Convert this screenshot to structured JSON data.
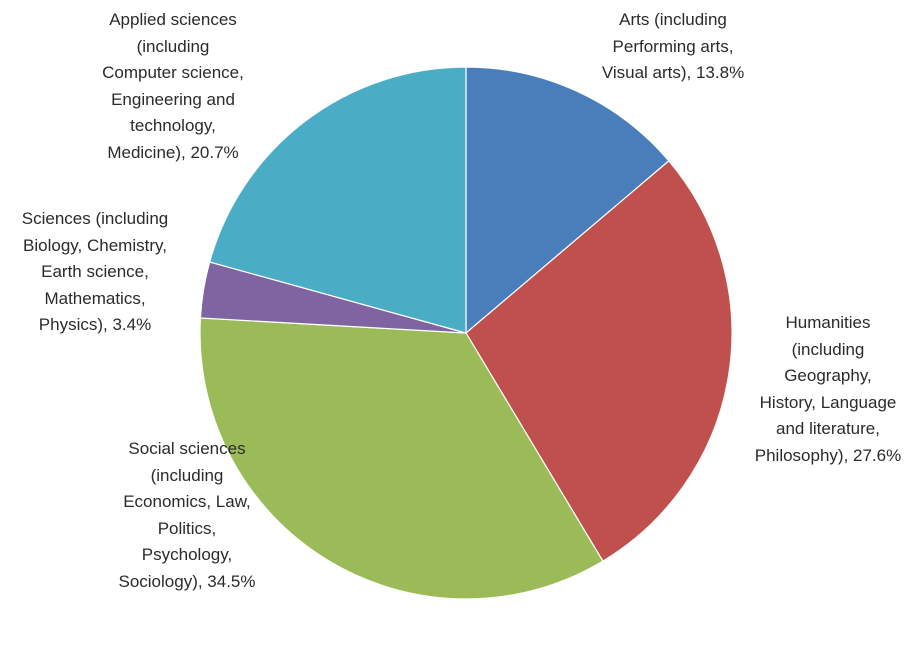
{
  "chart_data": {
    "type": "pie",
    "title": "",
    "start_angle_deg": 0,
    "direction": "clockwise",
    "slices": [
      {
        "label_lines": [
          "Arts (including",
          "Performing arts,",
          "Visual arts), 13.8%"
        ],
        "category": "Arts (including Performing arts, Visual arts)",
        "value": 13.8,
        "color": "#4a7ebb"
      },
      {
        "label_lines": [
          "Humanities",
          "(including",
          "Geography,",
          "History, Language",
          "and literature,",
          "Philosophy), 27.6%"
        ],
        "category": "Humanities (including Geography, History, Language and literature, Philosophy)",
        "value": 27.6,
        "color": "#c0504d"
      },
      {
        "label_lines": [
          "Social sciences",
          "(including",
          "Economics, Law,",
          "Politics,",
          "Psychology,",
          "Sociology), 34.5%"
        ],
        "category": "Social sciences (including Economics, Law, Politics, Psychology, Sociology)",
        "value": 34.5,
        "color": "#9bbb59"
      },
      {
        "label_lines": [
          "Sciences (including",
          "Biology, Chemistry,",
          "Earth science,",
          "Mathematics,",
          "Physics), 3.4%"
        ],
        "category": "Sciences (including Biology, Chemistry, Earth science, Mathematics, Physics)",
        "value": 3.4,
        "color": "#8064a2"
      },
      {
        "label_lines": [
          "Applied sciences",
          "(including",
          "Computer science,",
          "Engineering and",
          "technology,",
          "Medicine), 20.7%"
        ],
        "category": "Applied sciences (including Computer science, Engineering and technology, Medicine)",
        "value": 20.7,
        "color": "#4bacc6"
      }
    ]
  }
}
